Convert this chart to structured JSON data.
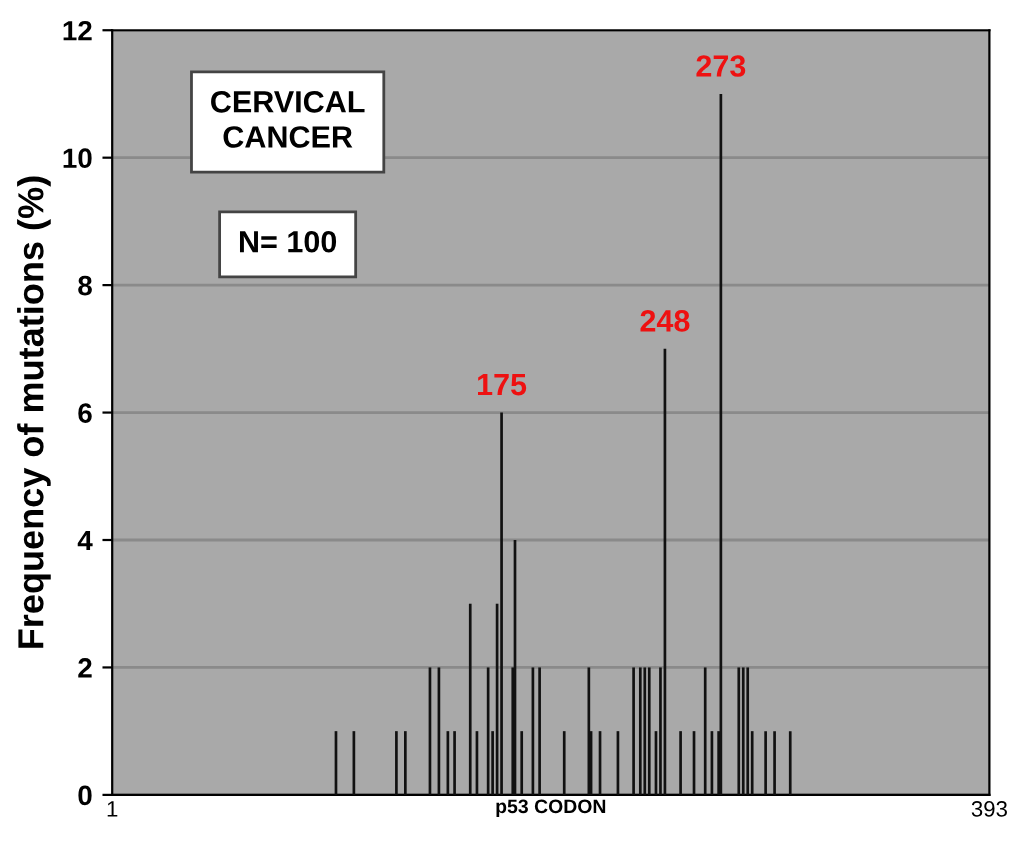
{
  "chart_data": {
    "type": "bar",
    "ylabel": "Frequency of mutations (%)",
    "xlabel": "p53 CODON",
    "x": [
      101,
      109,
      128,
      132,
      143,
      147,
      151,
      154,
      161,
      164,
      169,
      171,
      173,
      175,
      180,
      181,
      184,
      189,
      192,
      203,
      214,
      215,
      219,
      227,
      234,
      237,
      239,
      241,
      244,
      246,
      248,
      255,
      261,
      266,
      269,
      272,
      273,
      281,
      283,
      285,
      287,
      293,
      297,
      304
    ],
    "values": [
      1,
      1,
      1,
      1,
      2,
      2,
      1,
      1,
      3,
      1,
      2,
      1,
      3,
      6,
      2,
      4,
      1,
      2,
      2,
      1,
      2,
      1,
      1,
      1,
      2,
      2,
      2,
      2,
      1,
      2,
      7,
      1,
      1,
      2,
      1,
      1,
      11,
      2,
      2,
      2,
      1,
      1,
      1,
      1
    ],
    "color": "#111111",
    "xlim": [
      1,
      393
    ],
    "xticks": [
      1,
      393
    ],
    "ylim": [
      0,
      12
    ],
    "yticks": [
      0,
      2,
      4,
      6,
      8,
      10,
      12
    ],
    "grid": "y",
    "annotations": [
      {
        "text": "175",
        "x": 175,
        "y": 6
      },
      {
        "text": "248",
        "x": 248,
        "y": 7
      },
      {
        "text": "273",
        "x": 273,
        "y": 11
      },
      "CERVICAL\nCANCER",
      "N= 100"
    ]
  }
}
